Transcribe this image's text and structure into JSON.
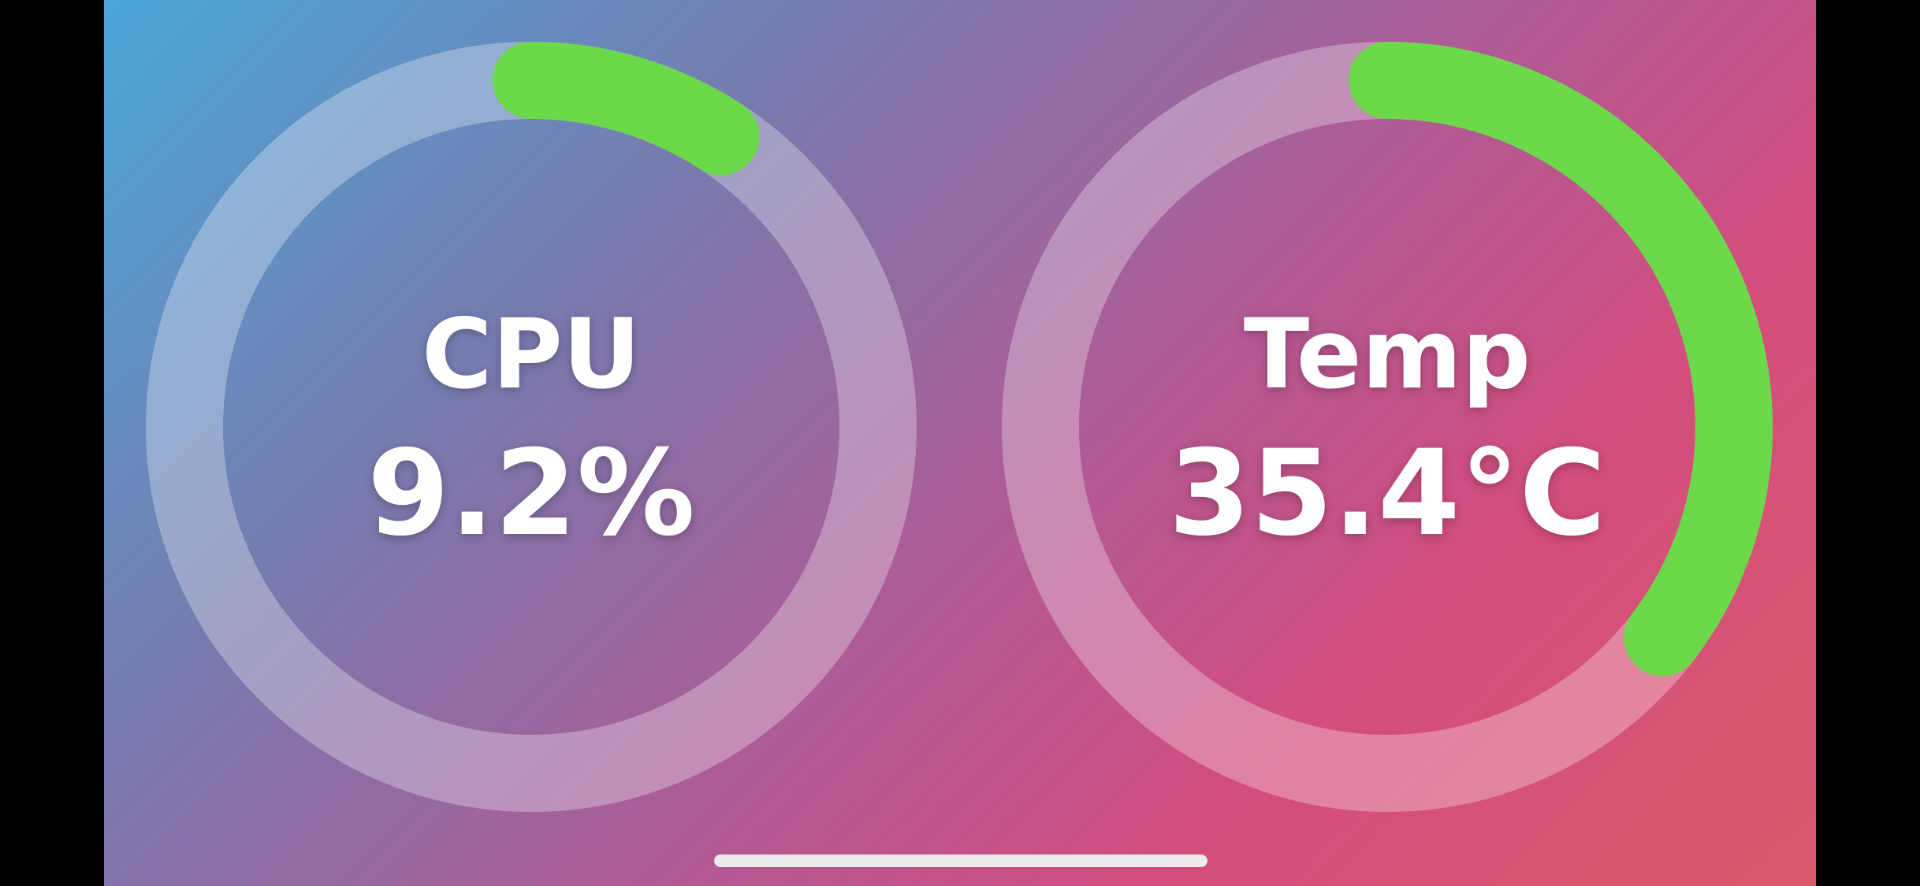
{
  "gauges": [
    {
      "id": "cpu",
      "title": "CPU",
      "value_text": "9.2%",
      "fill_fraction": 0.092
    },
    {
      "id": "temp",
      "title": "Temp",
      "value_text": "35.4°C",
      "fill_fraction": 0.354
    }
  ],
  "colors": {
    "progress": "#6cd94b",
    "track": "rgba(255,255,255,0.30)",
    "text": "#ffffff"
  }
}
